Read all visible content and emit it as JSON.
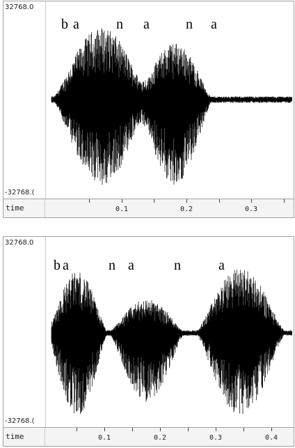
{
  "panels": [
    {
      "y_max_label": "32768.0",
      "y_min_label": "-32768.(",
      "axis_name": "time",
      "syllables": [
        "b",
        "a",
        "n",
        "a",
        "n",
        "a"
      ],
      "ticks": [
        "0.1",
        "0.2",
        "0.3"
      ]
    },
    {
      "y_max_label": "32768.0",
      "y_min_label": "-32768.(",
      "axis_name": "time",
      "syllables": [
        "b",
        "a",
        "n",
        "a",
        "n",
        "a"
      ],
      "ticks": [
        "0.1",
        "0.2",
        "0.3",
        "0.4"
      ]
    }
  ],
  "colors": {
    "waveform": "#000000",
    "background": "#ffffff",
    "axis_bar": "#f4f4f4",
    "border": "#a0a0a0"
  }
}
